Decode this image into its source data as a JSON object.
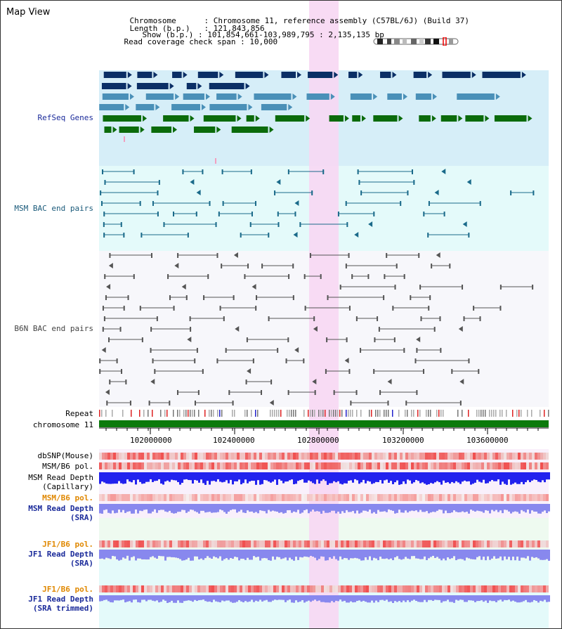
{
  "title": "Map View",
  "header": {
    "chromosome_key": "Chromosome",
    "chromosome_value": "Chromosome 11, reference assembly (C57BL/6J) (Build 37)",
    "length_key": "Length (b.p.)",
    "length_value": "121,843,856",
    "show_key": "Show (b.p.)",
    "show_value": "101,854,661-103,989,795 : 2,135,135 bp",
    "span_key": "Read coverage check span",
    "span_value": "10,000"
  },
  "tracks": {
    "refseq": "RefSeq Genes",
    "msm_bac": "MSM BAC end pairs",
    "b6n_bac": "B6N BAC end pairs",
    "repeat": "Repeat",
    "chromosome": "chromosome 11",
    "dbsnp": "dbSNP(Mouse)",
    "msm_b6_pol_1": "MSM/B6 pol.",
    "msm_depth_cap_1": "MSM Read Depth",
    "msm_depth_cap_2": "(Capillary)",
    "msm_b6_pol_2": "MSM/B6 pol.",
    "msm_depth_sra_1": "MSM Read Depth",
    "msm_depth_sra_2": "(SRA)",
    "jf1_b6_pol_1": "JF1/B6 pol.",
    "jf1_depth_sra_1": "JF1 Read Depth",
    "jf1_depth_sra_2": "(SRA)",
    "jf1_b6_pol_2": "JF1/B6 pol.",
    "jf1_depth_trim_1": "JF1 Read Depth",
    "jf1_depth_trim_2": "(SRA trimmed)"
  },
  "axis": {
    "ticks": [
      "102000000",
      "102400000",
      "102800000",
      "103200000",
      "103600000"
    ]
  },
  "colors": {
    "highlight": "#f7d7f3",
    "refseq_bg": "#d6eef8",
    "msm_bac_bg": "#e4fafa",
    "b6n_bac_bg": "#f7f7fb",
    "gene_navy": "#0b2f66",
    "gene_teal": "#4a90b8",
    "gene_green": "#0b6b0b",
    "chrom_green": "#0b7a0b",
    "bac_msm": "#1a6a8a",
    "bac_b6n": "#555555",
    "snp_red": "#ee2222",
    "depth_blue": "#2222ee",
    "depth_lilac": "#8888ee",
    "label_navy": "#1a2a9a",
    "label_orange": "#e08800",
    "label_teal": "#1a5a7a"
  }
}
